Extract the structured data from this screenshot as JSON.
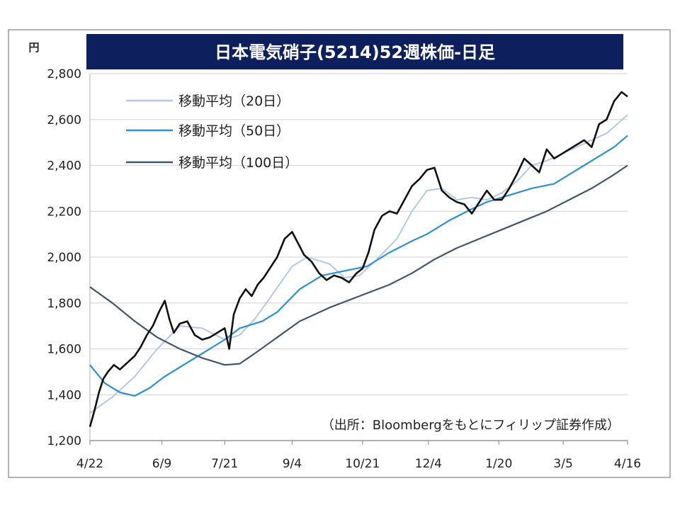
{
  "chart_data": {
    "type": "line",
    "title": "日本電気硝子(5214)52週株価-日足",
    "unit": "円",
    "source": "（出所：Bloombergをもとにフィリップ証券作成）",
    "ylim": [
      1200,
      2800
    ],
    "yticks": [
      1200,
      1400,
      1600,
      1800,
      2000,
      2200,
      2400,
      2600,
      2800
    ],
    "ytick_labels": [
      "1,200",
      "1,400",
      "1,600",
      "1,800",
      "2,000",
      "2,200",
      "2,400",
      "2,600",
      "2,800"
    ],
    "xlim": [
      0,
      359
    ],
    "xticks": [
      0,
      48,
      90,
      135,
      182,
      226,
      273,
      316,
      359
    ],
    "xtick_labels": [
      "4/22",
      "6/9",
      "7/21",
      "9/4",
      "10/21",
      "12/4",
      "1/20",
      "3/5",
      "4/16"
    ],
    "grid": true,
    "legend_position": "top-left",
    "series": [
      {
        "name": "移動平均（20日）",
        "color": "#b4c7e7",
        "x": [
          0,
          15,
          30,
          45,
          60,
          75,
          90,
          100,
          110,
          120,
          135,
          145,
          160,
          170,
          180,
          190,
          205,
          215,
          225,
          235,
          245,
          255,
          265,
          275,
          285,
          295,
          305,
          315,
          325,
          335,
          345,
          359
        ],
        "y": [
          1320,
          1390,
          1480,
          1600,
          1700,
          1690,
          1640,
          1660,
          1730,
          1820,
          1960,
          2000,
          1970,
          1910,
          1920,
          1980,
          2080,
          2200,
          2290,
          2300,
          2250,
          2260,
          2250,
          2280,
          2330,
          2400,
          2420,
          2450,
          2480,
          2510,
          2540,
          2620
        ]
      },
      {
        "name": "移動平均（50日）",
        "color": "#2e8fd6",
        "x": [
          0,
          10,
          20,
          30,
          40,
          50,
          60,
          75,
          90,
          100,
          115,
          125,
          140,
          155,
          170,
          185,
          200,
          215,
          225,
          240,
          255,
          265,
          280,
          295,
          310,
          320,
          330,
          340,
          350,
          359
        ],
        "y": [
          1530,
          1450,
          1410,
          1395,
          1430,
          1480,
          1520,
          1580,
          1640,
          1690,
          1720,
          1760,
          1860,
          1920,
          1940,
          1960,
          2020,
          2070,
          2100,
          2160,
          2210,
          2240,
          2270,
          2300,
          2320,
          2360,
          2400,
          2440,
          2480,
          2530
        ]
      },
      {
        "name": "移動平均（100日）",
        "color": "#44546a",
        "x": [
          0,
          15,
          30,
          45,
          60,
          75,
          90,
          100,
          110,
          125,
          140,
          160,
          180,
          200,
          215,
          230,
          245,
          260,
          275,
          290,
          305,
          320,
          335,
          350,
          359
        ],
        "y": [
          1870,
          1800,
          1720,
          1650,
          1600,
          1560,
          1530,
          1535,
          1580,
          1650,
          1720,
          1780,
          1830,
          1880,
          1930,
          1990,
          2040,
          2080,
          2120,
          2160,
          2200,
          2250,
          2300,
          2360,
          2400
        ]
      },
      {
        "name": "日足",
        "color": "#111111",
        "x": [
          0,
          3,
          6,
          9,
          12,
          16,
          20,
          25,
          30,
          34,
          38,
          42,
          46,
          50,
          53,
          56,
          60,
          65,
          70,
          75,
          80,
          85,
          90,
          93,
          96,
          100,
          104,
          108,
          112,
          116,
          120,
          125,
          130,
          135,
          139,
          143,
          148,
          153,
          158,
          163,
          168,
          173,
          178,
          182,
          186,
          190,
          195,
          200,
          205,
          210,
          215,
          220,
          225,
          230,
          235,
          240,
          245,
          250,
          255,
          260,
          265,
          270,
          275,
          280,
          285,
          290,
          295,
          300,
          305,
          310,
          315,
          320,
          325,
          330,
          335,
          340,
          345,
          350,
          355,
          359
        ],
        "y": [
          1260,
          1330,
          1410,
          1470,
          1500,
          1530,
          1510,
          1540,
          1570,
          1610,
          1660,
          1700,
          1760,
          1810,
          1730,
          1670,
          1710,
          1720,
          1660,
          1640,
          1650,
          1670,
          1690,
          1600,
          1750,
          1820,
          1860,
          1830,
          1880,
          1910,
          1950,
          2000,
          2080,
          2110,
          2060,
          2010,
          1980,
          1930,
          1900,
          1920,
          1910,
          1890,
          1930,
          1950,
          2020,
          2120,
          2180,
          2200,
          2190,
          2250,
          2310,
          2340,
          2380,
          2390,
          2290,
          2260,
          2240,
          2230,
          2190,
          2240,
          2290,
          2250,
          2250,
          2300,
          2360,
          2430,
          2400,
          2370,
          2470,
          2430,
          2450,
          2470,
          2490,
          2510,
          2480,
          2580,
          2600,
          2680,
          2720,
          2700
        ]
      }
    ]
  }
}
